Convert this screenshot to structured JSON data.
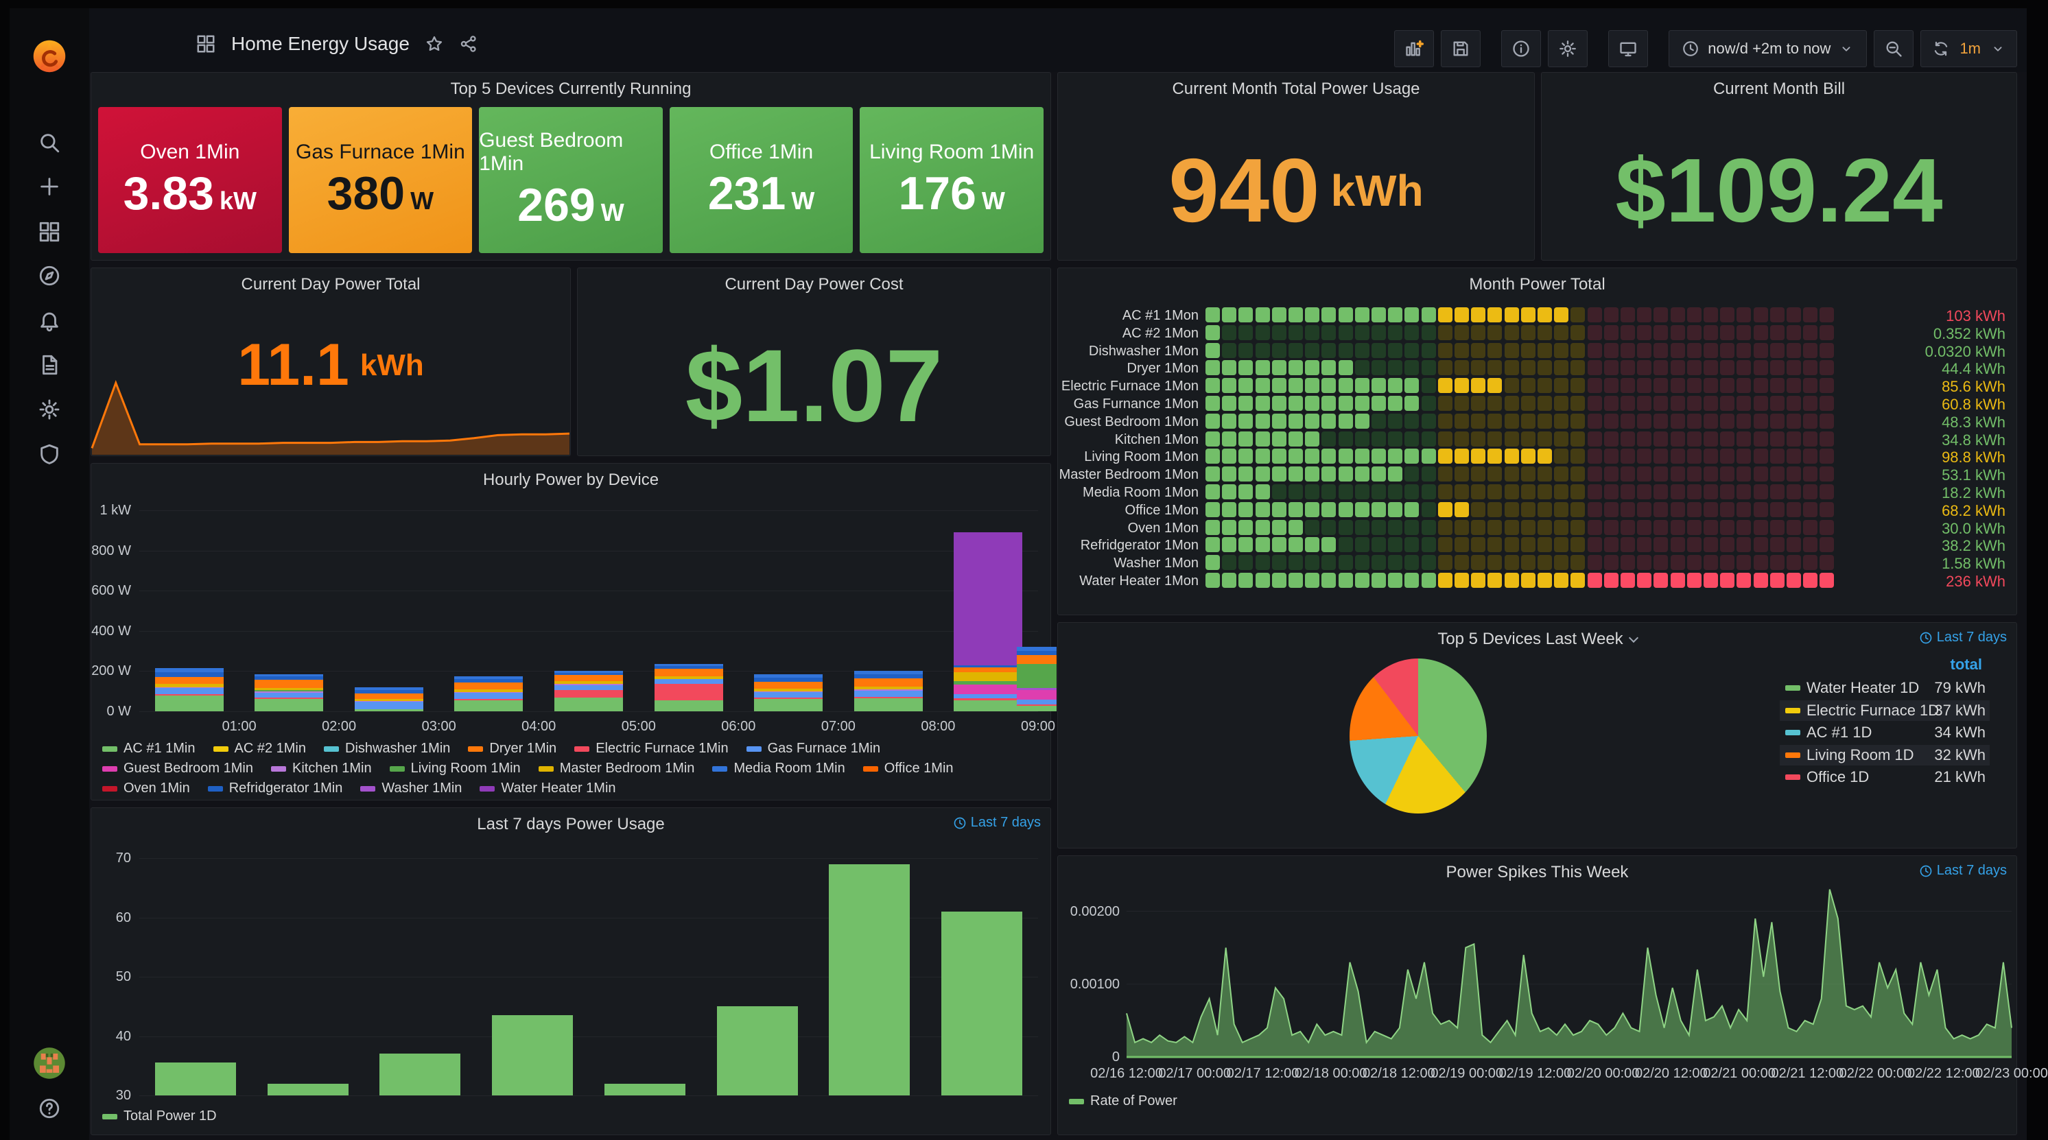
{
  "app": {
    "title": "Home Energy Usage"
  },
  "topbar": {
    "time_range": "now/d +2m to now",
    "refresh_interval": "1m",
    "icons": [
      "add-panel",
      "save-dashboard",
      "panel-info",
      "dashboard-settings",
      "tv-kiosk",
      "zoom-out",
      "refresh"
    ]
  },
  "sidebar": {
    "items": [
      "search",
      "create-plus",
      "dashboards-grid",
      "explore-compass",
      "alerting-bell",
      "docs-file",
      "configuration-gear",
      "admin-shield"
    ],
    "bottom": [
      "avatar",
      "help"
    ]
  },
  "palette": {
    "green": "#73BF69",
    "yellow": "#F2CC0C",
    "cyan": "#56C2D1",
    "orange": "#FF780A",
    "red": "#F2495C",
    "blue": "#5794F2",
    "magenta": "#DE3EAF",
    "purple": "#B877D9",
    "dark_green": "#56A64B",
    "gold": "#E0B400",
    "media_blue": "#3274D9",
    "dark_orange": "#FA6400",
    "dark_red": "#C4162A",
    "ref_blue": "#1F60C4",
    "washer_purple": "#A352CC",
    "water_purple": "#8F3BB8",
    "stat_orange": "#F2A33C",
    "day_orange": "#FF780A",
    "stat_green": "#73BF69",
    "link_blue": "#35A2E8",
    "value_yellow": "#ECBB13",
    "bright_red": "#F2495C",
    "dim_green": "#203d25",
    "dim_yellow": "#443c13",
    "dim_red": "#3e2029"
  },
  "panels": {
    "top5_running": {
      "title": "Top 5 Devices Currently Running",
      "tiles": [
        {
          "label": "Oven 1Min",
          "value": "3.83",
          "unit": "kW",
          "color": "red"
        },
        {
          "label": "Gas Furnace 1Min",
          "value": "380",
          "unit": "W",
          "color": "orange"
        },
        {
          "label": "Guest Bedroom 1Min",
          "value": "269",
          "unit": "W",
          "color": "green"
        },
        {
          "label": "Office 1Min",
          "value": "231",
          "unit": "W",
          "color": "green"
        },
        {
          "label": "Living Room 1Min",
          "value": "176",
          "unit": "W",
          "color": "green"
        }
      ]
    },
    "month_usage": {
      "title": "Current Month Total Power Usage",
      "value": "940",
      "unit": "kWh"
    },
    "month_bill": {
      "title": "Current Month Bill",
      "value": "$109.24"
    },
    "day_total": {
      "title": "Current Day Power Total",
      "value": "11.1",
      "unit": "kWh"
    },
    "day_cost": {
      "title": "Current Day Power Cost",
      "value": "$1.07"
    },
    "month_total": {
      "title": "Month Power Total"
    },
    "hourly": {
      "title": "Hourly Power by Device"
    },
    "pie": {
      "title": "Top 5 Devices Last Week",
      "link": "Last 7 days",
      "col_header": "total"
    },
    "last7": {
      "title": "Last 7 days Power Usage",
      "link": "Last 7 days"
    },
    "spikes": {
      "title": "Power Spikes This Week",
      "link": "Last 7 days"
    }
  },
  "chart_data": {
    "month_total": {
      "type": "heatmap",
      "unit": "kWh",
      "zones": {
        "green_cols": 14,
        "yellow_cols": 9,
        "red_cols": 15
      },
      "rows": [
        {
          "label": "AC #1 1Mon",
          "value": "103",
          "color": "bright_red",
          "g": 14,
          "y": 8,
          "r": 0
        },
        {
          "label": "AC #2 1Mon",
          "value": "0.352",
          "color": "green",
          "g": 1,
          "y": 0,
          "r": 0
        },
        {
          "label": "Dishwasher 1Mon",
          "value": "0.0320",
          "color": "green",
          "g": 1,
          "y": 0,
          "r": 0
        },
        {
          "label": "Dryer 1Mon",
          "value": "44.4",
          "color": "green",
          "g": 9,
          "y": 0,
          "r": 0
        },
        {
          "label": "Electric Furnace 1Mon",
          "value": "85.6",
          "color": "value_yellow",
          "g": 13,
          "y": 4,
          "r": 0
        },
        {
          "label": "Gas Furnance 1Mon",
          "value": "60.8",
          "color": "value_yellow",
          "g": 13,
          "y": 0,
          "r": 0
        },
        {
          "label": "Guest Bedroom 1Mon",
          "value": "48.3",
          "color": "green",
          "g": 10,
          "y": 0,
          "r": 0
        },
        {
          "label": "Kitchen 1Mon",
          "value": "34.8",
          "color": "green",
          "g": 7,
          "y": 0,
          "r": 0
        },
        {
          "label": "Living Room 1Mon",
          "value": "98.8",
          "color": "value_yellow",
          "g": 14,
          "y": 7,
          "r": 0
        },
        {
          "label": "Master Bedroom 1Mon",
          "value": "53.1",
          "color": "green",
          "g": 12,
          "y": 0,
          "r": 0
        },
        {
          "label": "Media Room 1Mon",
          "value": "18.2",
          "color": "green",
          "g": 4,
          "y": 0,
          "r": 0
        },
        {
          "label": "Office 1Mon",
          "value": "68.2",
          "color": "value_yellow",
          "g": 13,
          "y": 2,
          "r": 0
        },
        {
          "label": "Oven 1Mon",
          "value": "30.0",
          "color": "green",
          "g": 6,
          "y": 0,
          "r": 0
        },
        {
          "label": "Refridgerator 1Mon",
          "value": "38.2",
          "color": "green",
          "g": 8,
          "y": 0,
          "r": 0
        },
        {
          "label": "Washer 1Mon",
          "value": "1.58",
          "color": "green",
          "g": 1,
          "y": 0,
          "r": 0
        },
        {
          "label": "Water Heater 1Mon",
          "value": "236",
          "color": "bright_red",
          "g": 14,
          "y": 9,
          "r": 15
        }
      ]
    },
    "hourly": {
      "type": "bar",
      "stacked": true,
      "ylabel": "",
      "ylim": [
        0,
        1000
      ],
      "yticks": [
        "0 W",
        "200 W",
        "400 W",
        "600 W",
        "800 W",
        "1 kW"
      ],
      "xticks": [
        "01:00",
        "02:00",
        "03:00",
        "04:00",
        "05:00",
        "06:00",
        "07:00",
        "08:00",
        "09:00"
      ],
      "legend": [
        {
          "label": "AC #1 1Min",
          "color": "green"
        },
        {
          "label": "AC #2 1Min",
          "color": "yellow"
        },
        {
          "label": "Dishwasher 1Min",
          "color": "cyan"
        },
        {
          "label": "Dryer 1Min",
          "color": "orange"
        },
        {
          "label": "Electric Furnace 1Min",
          "color": "red"
        },
        {
          "label": "Gas Furnace 1Min",
          "color": "blue"
        },
        {
          "label": "Guest Bedroom 1Min",
          "color": "magenta"
        },
        {
          "label": "Kitchen 1Min",
          "color": "purple"
        },
        {
          "label": "Living Room 1Min",
          "color": "dark_green"
        },
        {
          "label": "Master Bedroom 1Min",
          "color": "gold"
        },
        {
          "label": "Media Room 1Min",
          "color": "media_blue"
        },
        {
          "label": "Office 1Min",
          "color": "dark_orange"
        },
        {
          "label": "Oven 1Min",
          "color": "dark_red"
        },
        {
          "label": "Refridgerator 1Min",
          "color": "ref_blue"
        },
        {
          "label": "Washer 1Min",
          "color": "washer_purple"
        },
        {
          "label": "Water Heater 1Min",
          "color": "water_purple"
        }
      ],
      "bars": [
        {
          "segments": [
            [
              "green",
              78
            ],
            [
              "red",
              7
            ],
            [
              "blue",
              30
            ],
            [
              "purple",
              6
            ],
            [
              "gold",
              16
            ],
            [
              "orange",
              34
            ],
            [
              "ref_blue",
              24
            ],
            [
              "media_blue",
              20
            ]
          ]
        },
        {
          "segments": [
            [
              "green",
              62
            ],
            [
              "red",
              6
            ],
            [
              "blue",
              26
            ],
            [
              "purple",
              5
            ],
            [
              "dark_green",
              8
            ],
            [
              "gold",
              10
            ],
            [
              "orange",
              40
            ],
            [
              "ref_blue",
              16
            ],
            [
              "media_blue",
              12
            ]
          ]
        },
        {
          "segments": [
            [
              "green",
              12
            ],
            [
              "blue",
              36
            ],
            [
              "purple",
              5
            ],
            [
              "gold",
              10
            ],
            [
              "orange",
              26
            ],
            [
              "ref_blue",
              16
            ],
            [
              "media_blue",
              15
            ]
          ]
        },
        {
          "segments": [
            [
              "green",
              56
            ],
            [
              "red",
              5
            ],
            [
              "blue",
              30
            ],
            [
              "purple",
              5
            ],
            [
              "gold",
              12
            ],
            [
              "orange",
              36
            ],
            [
              "ref_blue",
              16
            ],
            [
              "media_blue",
              15
            ]
          ]
        },
        {
          "segments": [
            [
              "green",
              70
            ],
            [
              "red",
              36
            ],
            [
              "blue",
              24
            ],
            [
              "purple",
              5
            ],
            [
              "gold",
              15
            ],
            [
              "orange",
              30
            ],
            [
              "ref_blue",
              12
            ],
            [
              "media_blue",
              8
            ]
          ]
        },
        {
          "segments": [
            [
              "green",
              56
            ],
            [
              "red",
              80
            ],
            [
              "blue",
              24
            ],
            [
              "gold",
              15
            ],
            [
              "orange",
              36
            ],
            [
              "ref_blue",
              14
            ],
            [
              "media_blue",
              10
            ]
          ]
        },
        {
          "segments": [
            [
              "green",
              60
            ],
            [
              "red",
              7
            ],
            [
              "blue",
              28
            ],
            [
              "purple",
              5
            ],
            [
              "gold",
              12
            ],
            [
              "orange",
              36
            ],
            [
              "ref_blue",
              20
            ],
            [
              "media_blue",
              17
            ]
          ]
        },
        {
          "segments": [
            [
              "green",
              66
            ],
            [
              "red",
              7
            ],
            [
              "blue",
              30
            ],
            [
              "purple",
              5
            ],
            [
              "gold",
              15
            ],
            [
              "orange",
              40
            ],
            [
              "ref_blue",
              20
            ],
            [
              "media_blue",
              17
            ]
          ]
        },
        {
          "segments": [
            [
              "green",
              56
            ],
            [
              "red",
              8
            ],
            [
              "blue",
              22
            ],
            [
              "magenta",
              46
            ],
            [
              "dark_green",
              20
            ],
            [
              "gold",
              44
            ],
            [
              "orange",
              24
            ],
            [
              "ref_blue",
              10
            ],
            [
              "water_purple",
              660
            ]
          ]
        },
        {
          "segments": [
            [
              "green",
              28
            ],
            [
              "red",
              7
            ],
            [
              "blue",
              22
            ],
            [
              "magenta",
              48
            ],
            [
              "washer_purple",
              12
            ],
            [
              "dark_green",
              118
            ],
            [
              "orange",
              45
            ],
            [
              "ref_blue",
              20
            ],
            [
              "media_blue",
              22
            ]
          ]
        }
      ]
    },
    "pie": {
      "type": "pie",
      "unit": "kWh",
      "slices": [
        {
          "label": "Water Heater 1D",
          "value": 79,
          "color": "green",
          "highlight": false
        },
        {
          "label": "Electric Furnace 1D",
          "value": 37,
          "color": "yellow",
          "highlight": true
        },
        {
          "label": "AC #1 1D",
          "value": 34,
          "color": "cyan",
          "highlight": false
        },
        {
          "label": "Living Room 1D",
          "value": 32,
          "color": "orange",
          "highlight": true
        },
        {
          "label": "Office 1D",
          "value": 21,
          "color": "red",
          "highlight": false
        }
      ]
    },
    "last7": {
      "type": "bar",
      "values": [
        35.5,
        32,
        37,
        43.5,
        32,
        45,
        69,
        61
      ],
      "ylim": [
        30,
        70
      ],
      "yticks": [
        "30",
        "40",
        "50",
        "60",
        "70"
      ],
      "legend": "Total Power 1D",
      "bar_color": "green"
    },
    "spikes": {
      "type": "area",
      "legend": "Rate of Power",
      "yticks": [
        "0",
        "0.00100",
        "0.00200"
      ],
      "ymax": 0.0024,
      "xticks": [
        "02/16 12:00",
        "02/17 00:00",
        "02/17 12:00",
        "02/18 00:00",
        "02/18 12:00",
        "02/19 00:00",
        "02/19 12:00",
        "02/20 00:00",
        "02/20 12:00",
        "02/21 00:00",
        "02/21 12:00",
        "02/22 00:00",
        "02/22 12:00",
        "02/23 00:00"
      ],
      "points": [
        0.0006,
        0.0002,
        0.00025,
        0.0002,
        0.0003,
        0.00022,
        0.0002,
        0.00028,
        0.0002,
        0.00055,
        0.0008,
        0.0003,
        0.0015,
        0.00045,
        0.0002,
        0.00025,
        0.0003,
        0.0004,
        0.00095,
        0.0008,
        0.0003,
        0.00035,
        0.0002,
        0.00045,
        0.0003,
        0.00035,
        0.0003,
        0.0013,
        0.0009,
        0.0002,
        0.00035,
        0.0003,
        0.00025,
        0.0004,
        0.0012,
        0.0008,
        0.0013,
        0.0006,
        0.00045,
        0.0005,
        0.0004,
        0.0015,
        0.00155,
        0.0003,
        0.0002,
        0.00035,
        0.0005,
        0.0003,
        0.0014,
        0.0006,
        0.00035,
        0.0004,
        0.0003,
        0.00045,
        0.0003,
        0.00035,
        0.0005,
        0.00045,
        0.0003,
        0.0004,
        0.0006,
        0.0004,
        0.00035,
        0.0015,
        0.00085,
        0.0004,
        0.00095,
        0.0005,
        0.0003,
        0.0012,
        0.0005,
        0.00055,
        0.0007,
        0.0004,
        0.00065,
        0.0005,
        0.0019,
        0.0011,
        0.00185,
        0.0009,
        0.0004,
        0.00035,
        0.0005,
        0.00045,
        0.0008,
        0.0023,
        0.0019,
        0.0007,
        0.00065,
        0.0007,
        0.00055,
        0.0013,
        0.00095,
        0.0012,
        0.0006,
        0.00045,
        0.0013,
        0.00085,
        0.0012,
        0.0004,
        0.00025,
        0.0003,
        0.00025,
        0.0003,
        0.00045,
        0.0004,
        0.0013,
        0.0004
      ]
    },
    "day_spark": {
      "type": "area",
      "points": [
        0.05,
        0.9,
        0.1,
        0.1,
        0.1,
        0.11,
        0.11,
        0.11,
        0.12,
        0.12,
        0.12,
        0.13,
        0.13,
        0.14,
        0.14,
        0.15,
        0.18,
        0.22,
        0.23,
        0.23,
        0.24
      ]
    }
  }
}
